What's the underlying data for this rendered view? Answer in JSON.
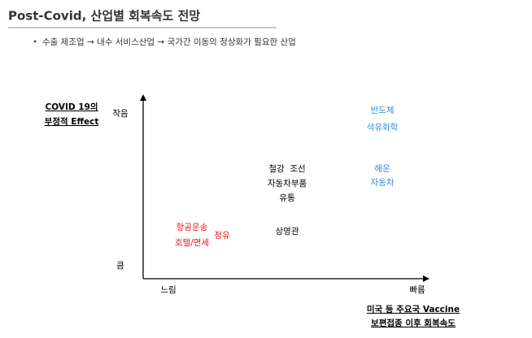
{
  "header": {
    "title": "Post-Covid, 산업별 회복속도 전망"
  },
  "bullet": "수출 제조업 → 내수 서비스산업 → 국가간 이동의 정상화가 필요한 산업",
  "y_axis": {
    "title": [
      "COVID 19의",
      "부정적 Effect"
    ],
    "top": "작음",
    "bottom": "큼"
  },
  "x_axis": {
    "title": [
      "미국 등 주요국 Vaccine",
      "보편접종 이후 회복속도"
    ],
    "left": "느림",
    "right": "빠름"
  },
  "groups": [
    {
      "color": "#2e8ee0",
      "items": [
        "반도체",
        "석유화학"
      ]
    },
    {
      "color": "#000000",
      "items": [
        "철강  조선",
        "자동차부품",
        "유통"
      ]
    },
    {
      "color": "#2e8ee0",
      "items": [
        "해운",
        "자동차"
      ]
    },
    {
      "color": "#e8141a",
      "items": [
        "항공운송",
        "호텔/면세"
      ]
    },
    {
      "color": "#e8141a",
      "items": [
        "정유"
      ]
    },
    {
      "color": "#000000",
      "items": [
        "상영관"
      ]
    }
  ]
}
